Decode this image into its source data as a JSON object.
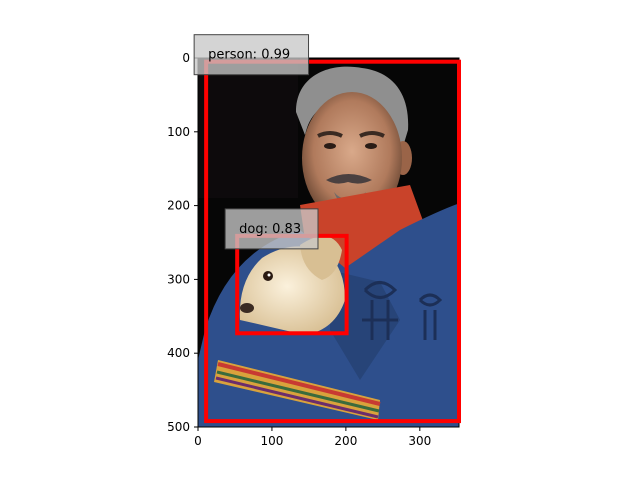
{
  "image_description_colors": {
    "background": "#060606",
    "jacket": "#2e4f8c",
    "scarf": "#c9432a",
    "box": "#ff0000",
    "label_bg": "#c8c8c8"
  },
  "axes": {
    "x_ticks": [
      "0",
      "100",
      "200",
      "300"
    ],
    "y_ticks": [
      "0",
      "100",
      "200",
      "300",
      "400",
      "500"
    ],
    "x_range": [
      0,
      353
    ],
    "y_range": [
      0,
      500
    ]
  },
  "detections": [
    {
      "label": "person: 0.99",
      "class": "person",
      "score": 0.99,
      "x0": 11,
      "y0": 5,
      "x1": 353,
      "y1": 492
    },
    {
      "label": "dog: 0.83",
      "class": "dog",
      "score": 0.83,
      "x0": 53,
      "y0": 241,
      "x1": 201,
      "y1": 373
    }
  ]
}
